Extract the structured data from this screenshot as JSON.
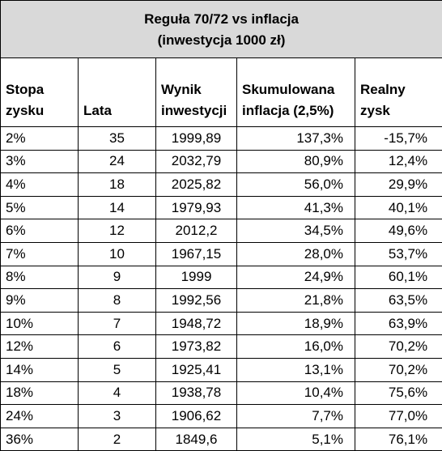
{
  "title": {
    "line1": "Reguła 70/72 vs inflacja",
    "line2": "(inwestycja 1000 zł)"
  },
  "headers": [
    [
      "Stopa",
      "zysku"
    ],
    [
      "",
      "Lata"
    ],
    [
      "Wynik",
      "inwestycji"
    ],
    [
      "Skumulowana",
      "inflacja (2,5%)"
    ],
    [
      "Realny",
      "zysk"
    ]
  ],
  "rows": [
    [
      "2%",
      "35",
      "1999,89",
      "137,3%",
      "-15,7%"
    ],
    [
      "3%",
      "24",
      "2032,79",
      "80,9%",
      "12,4%"
    ],
    [
      "4%",
      "18",
      "2025,82",
      "56,0%",
      "29,9%"
    ],
    [
      "5%",
      "14",
      "1979,93",
      "41,3%",
      "40,1%"
    ],
    [
      "6%",
      "12",
      "2012,2",
      "34,5%",
      "49,6%"
    ],
    [
      "7%",
      "10",
      "1967,15",
      "28,0%",
      "53,7%"
    ],
    [
      "8%",
      "9",
      "1999",
      "24,9%",
      "60,1%"
    ],
    [
      "9%",
      "8",
      "1992,56",
      "21,8%",
      "63,5%"
    ],
    [
      "10%",
      "7",
      "1948,72",
      "18,9%",
      "63,9%"
    ],
    [
      "12%",
      "6",
      "1973,82",
      "16,0%",
      "70,2%"
    ],
    [
      "14%",
      "5",
      "1925,41",
      "13,1%",
      "70,2%"
    ],
    [
      "18%",
      "4",
      "1938,78",
      "10,4%",
      "75,6%"
    ],
    [
      "24%",
      "3",
      "1906,62",
      "7,7%",
      "77,0%"
    ],
    [
      "36%",
      "2",
      "1849,6",
      "5,1%",
      "76,1%"
    ]
  ],
  "colors": {
    "title_background": "#d9d9d9",
    "border": "#000000"
  }
}
